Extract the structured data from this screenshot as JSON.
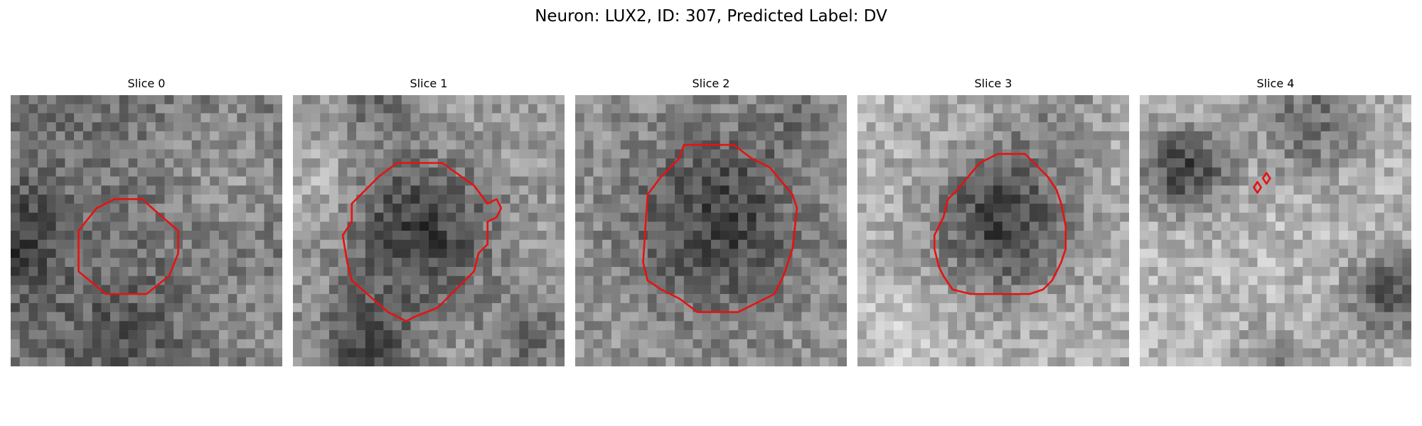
{
  "figure": {
    "title": "Neuron: LUX2, ID: 307, Predicted Label: DV",
    "panels": [
      {
        "title": "Slice 0",
        "pattern": "mottled-gray with faint central roi",
        "contour_color": "#e61212"
      },
      {
        "title": "Slice 1",
        "pattern": "dark cell body within bright ring",
        "contour_color": "#e61212"
      },
      {
        "title": "Slice 2",
        "pattern": "dark cell body centered",
        "contour_color": "#e61212"
      },
      {
        "title": "Slice 3",
        "pattern": "dark cell body within bright surround",
        "contour_color": "#e61212"
      },
      {
        "title": "Slice 4",
        "pattern": "bright tissue, tiny contour",
        "contour_color": "#e61212"
      }
    ]
  }
}
